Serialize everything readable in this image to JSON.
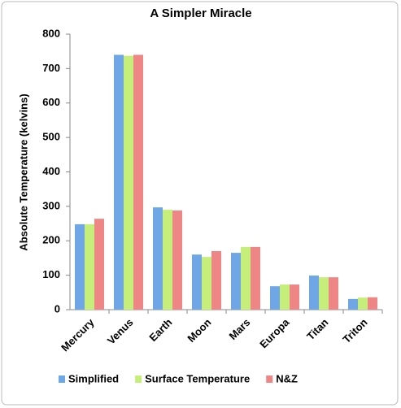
{
  "chart_data": {
    "type": "bar",
    "title": "A Simpler Miracle",
    "y_label": "Absolute Temperature (kelvins)",
    "categories": [
      "Mercury",
      "Venus",
      "Earth",
      "Moon",
      "Mars",
      "Europa",
      "Titan",
      "Triton"
    ],
    "series": [
      {
        "name": "Simplified",
        "color": "#6fa6e6",
        "values": [
          248,
          740,
          297,
          160,
          165,
          68,
          99,
          31
        ]
      },
      {
        "name": "Surface Temperature",
        "color": "#c6ee7a",
        "values": [
          248,
          737,
          290,
          153,
          182,
          73,
          94,
          35
        ]
      },
      {
        "name": "N&Z",
        "color": "#ee8686",
        "values": [
          264,
          740,
          288,
          170,
          182,
          73,
          94,
          36
        ]
      }
    ],
    "ylim": [
      0,
      800
    ],
    "yticks": [
      0,
      100,
      200,
      300,
      400,
      500,
      600,
      700,
      800
    ],
    "legend": "bottom"
  }
}
